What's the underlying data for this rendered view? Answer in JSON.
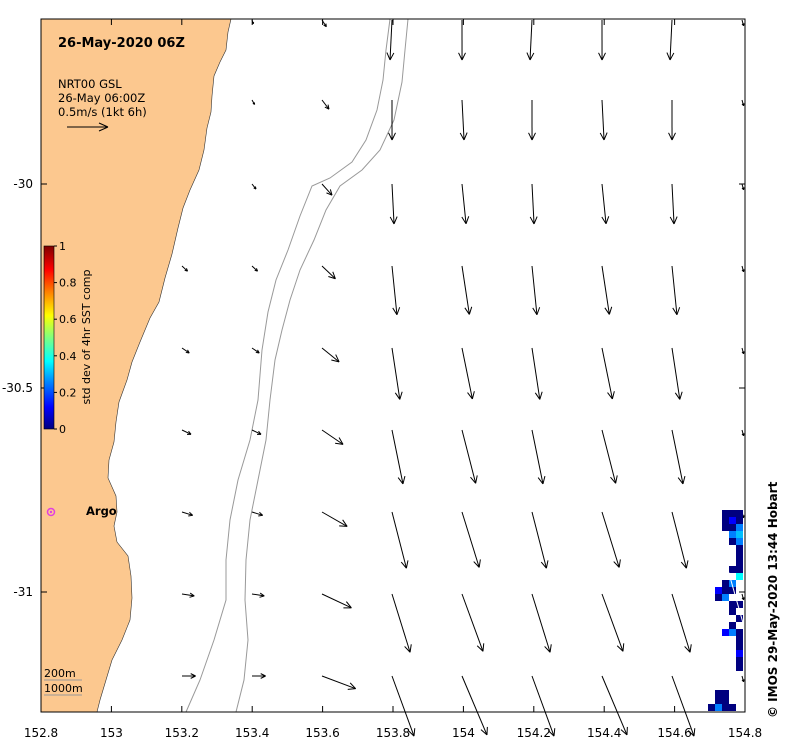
{
  "map": {
    "title": "26-May-2020 06Z",
    "current_source": "NRT00 GSL",
    "current_time": "26-May 06:00Z",
    "scale_note": "0.5m/s (1kt 6h)",
    "credit": "© IMOS 29-May-2020 13:44 Hobart",
    "bathymetry_labels": [
      "200m",
      "1000m"
    ],
    "argo_label": "Argo",
    "argo_color": "#e040e0",
    "land_color": "#fcc88f",
    "lon_range": [
      152.8,
      154.8
    ],
    "lat_range": [
      -29.6,
      -31.3
    ],
    "lon_ticks": [
      "152.8",
      "153",
      "153.2",
      "153.4",
      "153.6",
      "153.8",
      "154",
      "154.2",
      "154.4",
      "154.6",
      "154.8"
    ],
    "lat_ticks": [
      "-30",
      "-30.5",
      "-31"
    ],
    "colorbar": {
      "title": "std dev of 4hr SST comp",
      "ticks": [
        "1",
        "0.8",
        "0.6",
        "0.4",
        "0.2",
        "0"
      ],
      "colors": [
        "#00007f",
        "#0000ff",
        "#007fff",
        "#00ffff",
        "#7fff7f",
        "#ffff00",
        "#ff7f00",
        "#ff0000",
        "#7f0000"
      ]
    }
  }
}
